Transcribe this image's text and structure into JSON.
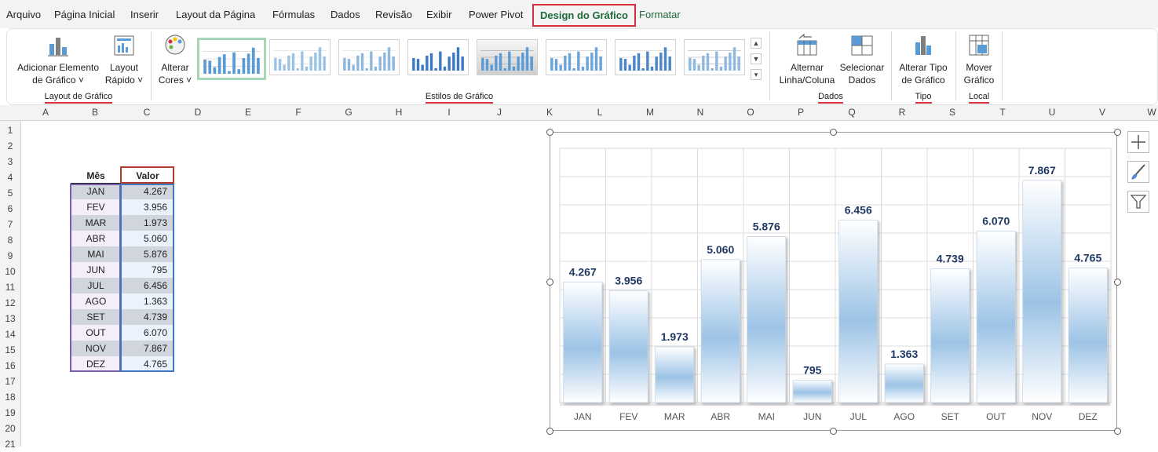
{
  "menu": {
    "tabs": [
      {
        "label": "Arquivo"
      },
      {
        "label": "Página Inicial"
      },
      {
        "label": "Inserir"
      },
      {
        "label": "Layout da Página"
      },
      {
        "label": "Fórmulas"
      },
      {
        "label": "Dados"
      },
      {
        "label": "Revisão"
      },
      {
        "label": "Exibir"
      },
      {
        "label": "Power Pivot"
      },
      {
        "label": "Design do Gráfico"
      },
      {
        "label": "Formatar"
      }
    ],
    "active_tab": "Design do Gráfico"
  },
  "ribbon": {
    "layout_group": {
      "label": "Layout de Gráfico",
      "add_element": {
        "line1": "Adicionar Elemento",
        "line2": "de Gráfico ˅"
      },
      "quick_layout": {
        "line1": "Layout",
        "line2": "Rápido ˅"
      }
    },
    "styles_group": {
      "label": "Estilos de Gráfico",
      "change_colors": {
        "line1": "Alterar",
        "line2": "Cores ˅"
      }
    },
    "data_group": {
      "label": "Dados",
      "switch_row_col": {
        "line1": "Alternar",
        "line2": "Linha/Coluna"
      },
      "select_data": {
        "line1": "Selecionar",
        "line2": "Dados"
      }
    },
    "type_group": {
      "label": "Tipo",
      "change_type": {
        "line1": "Alterar Tipo",
        "line2": "de Gráfico"
      }
    },
    "location_group": {
      "label": "Local",
      "move_chart": {
        "line1": "Mover",
        "line2": "Gráfico"
      }
    }
  },
  "sheet": {
    "columns": [
      "A",
      "B",
      "C",
      "D",
      "E",
      "F",
      "G",
      "H",
      "I",
      "J",
      "K",
      "L",
      "M",
      "N",
      "O",
      "P",
      "Q",
      "R",
      "S",
      "T",
      "U",
      "V",
      "W"
    ],
    "rows": [
      "1",
      "2",
      "3",
      "4",
      "5",
      "6",
      "7",
      "8",
      "9",
      "10",
      "11",
      "12",
      "13",
      "14",
      "15",
      "16",
      "17",
      "18",
      "19",
      "20",
      "21"
    ],
    "table": {
      "header_month": "Mês",
      "header_value": "Valor",
      "rows": [
        {
          "mes": "JAN",
          "valor": "4.267"
        },
        {
          "mes": "FEV",
          "valor": "3.956"
        },
        {
          "mes": "MAR",
          "valor": "1.973"
        },
        {
          "mes": "ABR",
          "valor": "5.060"
        },
        {
          "mes": "MAI",
          "valor": "5.876"
        },
        {
          "mes": "JUN",
          "valor": "795"
        },
        {
          "mes": "JUL",
          "valor": "6.456"
        },
        {
          "mes": "AGO",
          "valor": "1.363"
        },
        {
          "mes": "SET",
          "valor": "4.739"
        },
        {
          "mes": "OUT",
          "valor": "6.070"
        },
        {
          "mes": "NOV",
          "valor": "7.867"
        },
        {
          "mes": "DEZ",
          "valor": "4.765"
        }
      ]
    }
  },
  "colors": {
    "accent_red": "#d6303b",
    "tab_green": "#1e6b3a",
    "bar_blue": "#9cc3e6",
    "label_navy": "#1f3864",
    "row_dark": "#d1d5de",
    "row_light": "#f3eefa"
  },
  "chart_data": {
    "type": "bar",
    "categories": [
      "JAN",
      "FEV",
      "MAR",
      "ABR",
      "MAI",
      "JUN",
      "JUL",
      "AGO",
      "SET",
      "OUT",
      "NOV",
      "DEZ"
    ],
    "values": [
      4267,
      3956,
      1973,
      5060,
      5876,
      795,
      6456,
      1363,
      4739,
      6070,
      7867,
      4765
    ],
    "data_labels": [
      "4.267",
      "3.956",
      "1.973",
      "5.060",
      "5.876",
      "795",
      "6.456",
      "1.363",
      "4.739",
      "6.070",
      "7.867",
      "4.765"
    ],
    "ylim": [
      0,
      9000
    ],
    "grid": true,
    "legend": "none",
    "title": "",
    "xlabel": "",
    "ylabel": ""
  },
  "side_buttons": {
    "add_element": "plus-icon",
    "styles": "brush-icon",
    "filter": "filter-icon"
  }
}
